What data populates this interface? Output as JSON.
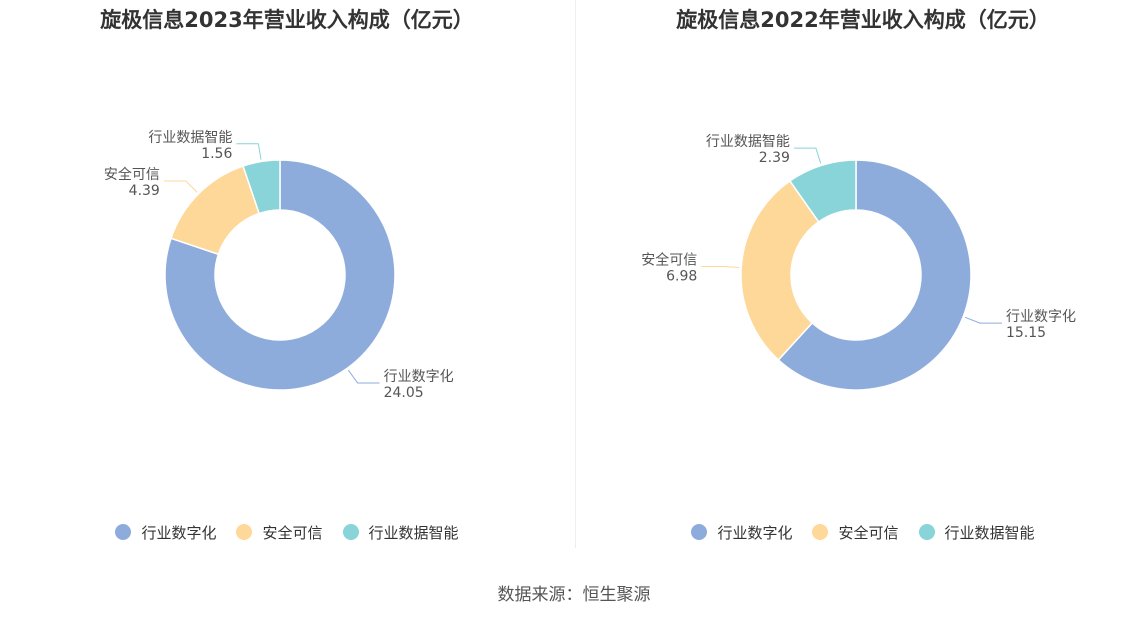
{
  "source_text": "数据来源：恒生聚源",
  "chart_data": [
    {
      "type": "pie",
      "subtype": "donut",
      "title": "旋极信息2023年营业收入构成（亿元）",
      "categories": [
        "行业数字化",
        "安全可信",
        "行业数据智能"
      ],
      "values": [
        24.05,
        4.39,
        1.56
      ],
      "value_labels": [
        "24.05",
        "4.39",
        "1.56"
      ],
      "colors": [
        "#8eacdb",
        "#fdd899",
        "#88d4d8"
      ],
      "legend_position": "bottom"
    },
    {
      "type": "pie",
      "subtype": "donut",
      "title": "旋极信息2022年营业收入构成（亿元）",
      "categories": [
        "行业数字化",
        "安全可信",
        "行业数据智能"
      ],
      "values": [
        15.15,
        6.98,
        2.39
      ],
      "value_labels": [
        "15.15",
        "6.98",
        "2.39"
      ],
      "colors": [
        "#8eacdb",
        "#fdd899",
        "#88d4d8"
      ],
      "legend_position": "bottom"
    }
  ]
}
